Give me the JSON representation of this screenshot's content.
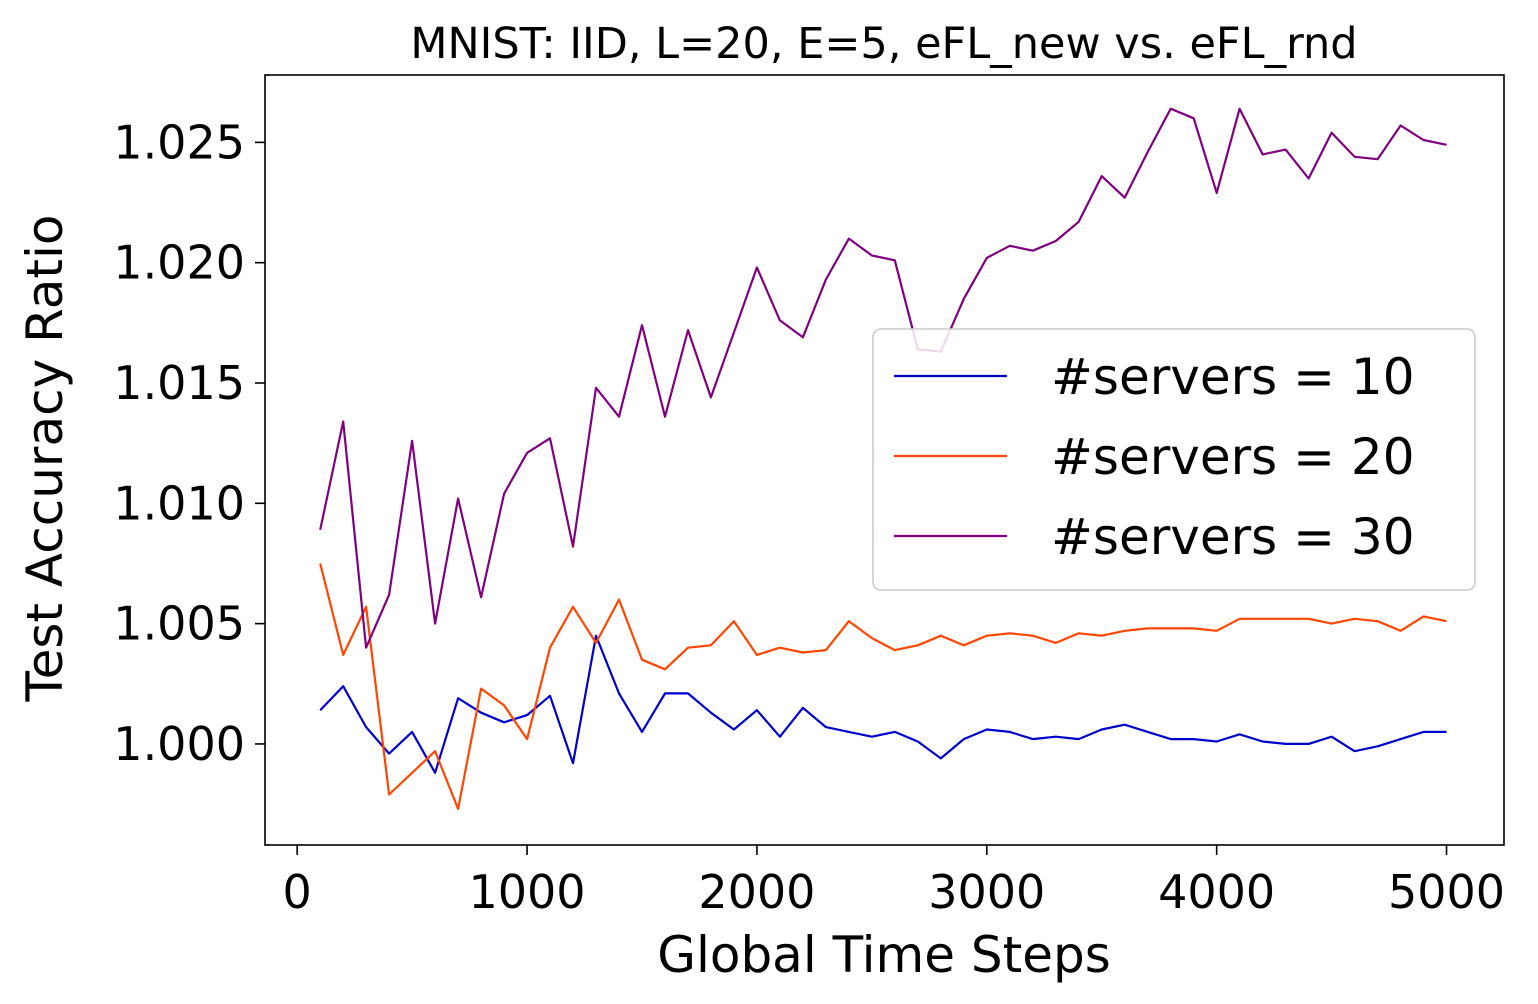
{
  "chart_data": {
    "type": "line",
    "title": "MNIST: IID, L=20, E=5, eFL_new vs. eFL_rnd",
    "xlabel": "Global Time Steps",
    "ylabel": "Test Accuracy Ratio",
    "xlim": [
      -140,
      5250
    ],
    "ylim": [
      0.9958,
      1.0278
    ],
    "xticks": [
      0,
      1000,
      2000,
      3000,
      4000,
      5000
    ],
    "yticks": [
      1.0,
      1.005,
      1.01,
      1.015,
      1.02,
      1.025
    ],
    "xtick_labels": [
      "0",
      "1000",
      "2000",
      "3000",
      "4000",
      "5000"
    ],
    "ytick_labels": [
      "1.000",
      "1.005",
      "1.010",
      "1.015",
      "1.020",
      "1.025"
    ],
    "grid": false,
    "legend_position": "center-right",
    "x": [
      100,
      200,
      300,
      400,
      500,
      600,
      700,
      800,
      900,
      1000,
      1100,
      1200,
      1300,
      1400,
      1500,
      1600,
      1700,
      1800,
      1900,
      2000,
      2100,
      2200,
      2300,
      2400,
      2500,
      2600,
      2700,
      2800,
      2900,
      3000,
      3100,
      3200,
      3300,
      3400,
      3500,
      3600,
      3700,
      3800,
      3900,
      4000,
      4100,
      4200,
      4300,
      4400,
      4500,
      4600,
      4700,
      4800,
      4900,
      5000
    ],
    "series": [
      {
        "name": "#servers = 10",
        "color": "#0000cc",
        "values": [
          1.0014,
          1.0024,
          1.0007,
          0.9996,
          1.0005,
          0.9988,
          1.0019,
          1.0013,
          1.0009,
          1.0012,
          1.002,
          0.9992,
          1.0045,
          1.0021,
          1.0005,
          1.0021,
          1.0021,
          1.0013,
          1.0006,
          1.0014,
          1.0003,
          1.0015,
          1.0007,
          1.0005,
          1.0003,
          1.0005,
          1.0001,
          0.9994,
          1.0002,
          1.0006,
          1.0005,
          1.0002,
          1.0003,
          1.0002,
          1.0006,
          1.0008,
          1.0005,
          1.0002,
          1.0002,
          1.0001,
          1.0004,
          1.0001,
          1.0,
          1.0,
          1.0003,
          0.9997,
          0.9999,
          1.0002,
          1.0005,
          1.0005
        ]
      },
      {
        "name": "#servers = 20",
        "color": "#ff4500",
        "values": [
          1.0075,
          1.0037,
          1.0057,
          0.9979,
          0.9988,
          0.9997,
          0.9973,
          1.0023,
          1.0016,
          1.0002,
          1.004,
          1.0057,
          1.0042,
          1.006,
          1.0035,
          1.0031,
          1.004,
          1.0041,
          1.0051,
          1.0037,
          1.004,
          1.0038,
          1.0039,
          1.0051,
          1.0044,
          1.0039,
          1.0041,
          1.0045,
          1.0041,
          1.0045,
          1.0046,
          1.0045,
          1.0042,
          1.0046,
          1.0045,
          1.0047,
          1.0048,
          1.0048,
          1.0048,
          1.0047,
          1.0052,
          1.0052,
          1.0052,
          1.0052,
          1.005,
          1.0052,
          1.0051,
          1.0047,
          1.0053,
          1.0051
        ]
      },
      {
        "name": "#servers = 30",
        "color": "#800080",
        "values": [
          1.0089,
          1.0134,
          1.004,
          1.0062,
          1.0126,
          1.005,
          1.0102,
          1.0061,
          1.0104,
          1.0121,
          1.0127,
          1.0082,
          1.0148,
          1.0136,
          1.0174,
          1.0136,
          1.0172,
          1.0144,
          1.0171,
          1.0198,
          1.0176,
          1.0169,
          1.0193,
          1.021,
          1.0203,
          1.0201,
          1.0164,
          1.0163,
          1.0185,
          1.0202,
          1.0207,
          1.0205,
          1.0209,
          1.0217,
          1.0236,
          1.0227,
          1.0246,
          1.0264,
          1.026,
          1.0229,
          1.0264,
          1.0245,
          1.0247,
          1.0235,
          1.0254,
          1.0244,
          1.0243,
          1.0257,
          1.0251,
          1.0249
        ]
      }
    ]
  }
}
